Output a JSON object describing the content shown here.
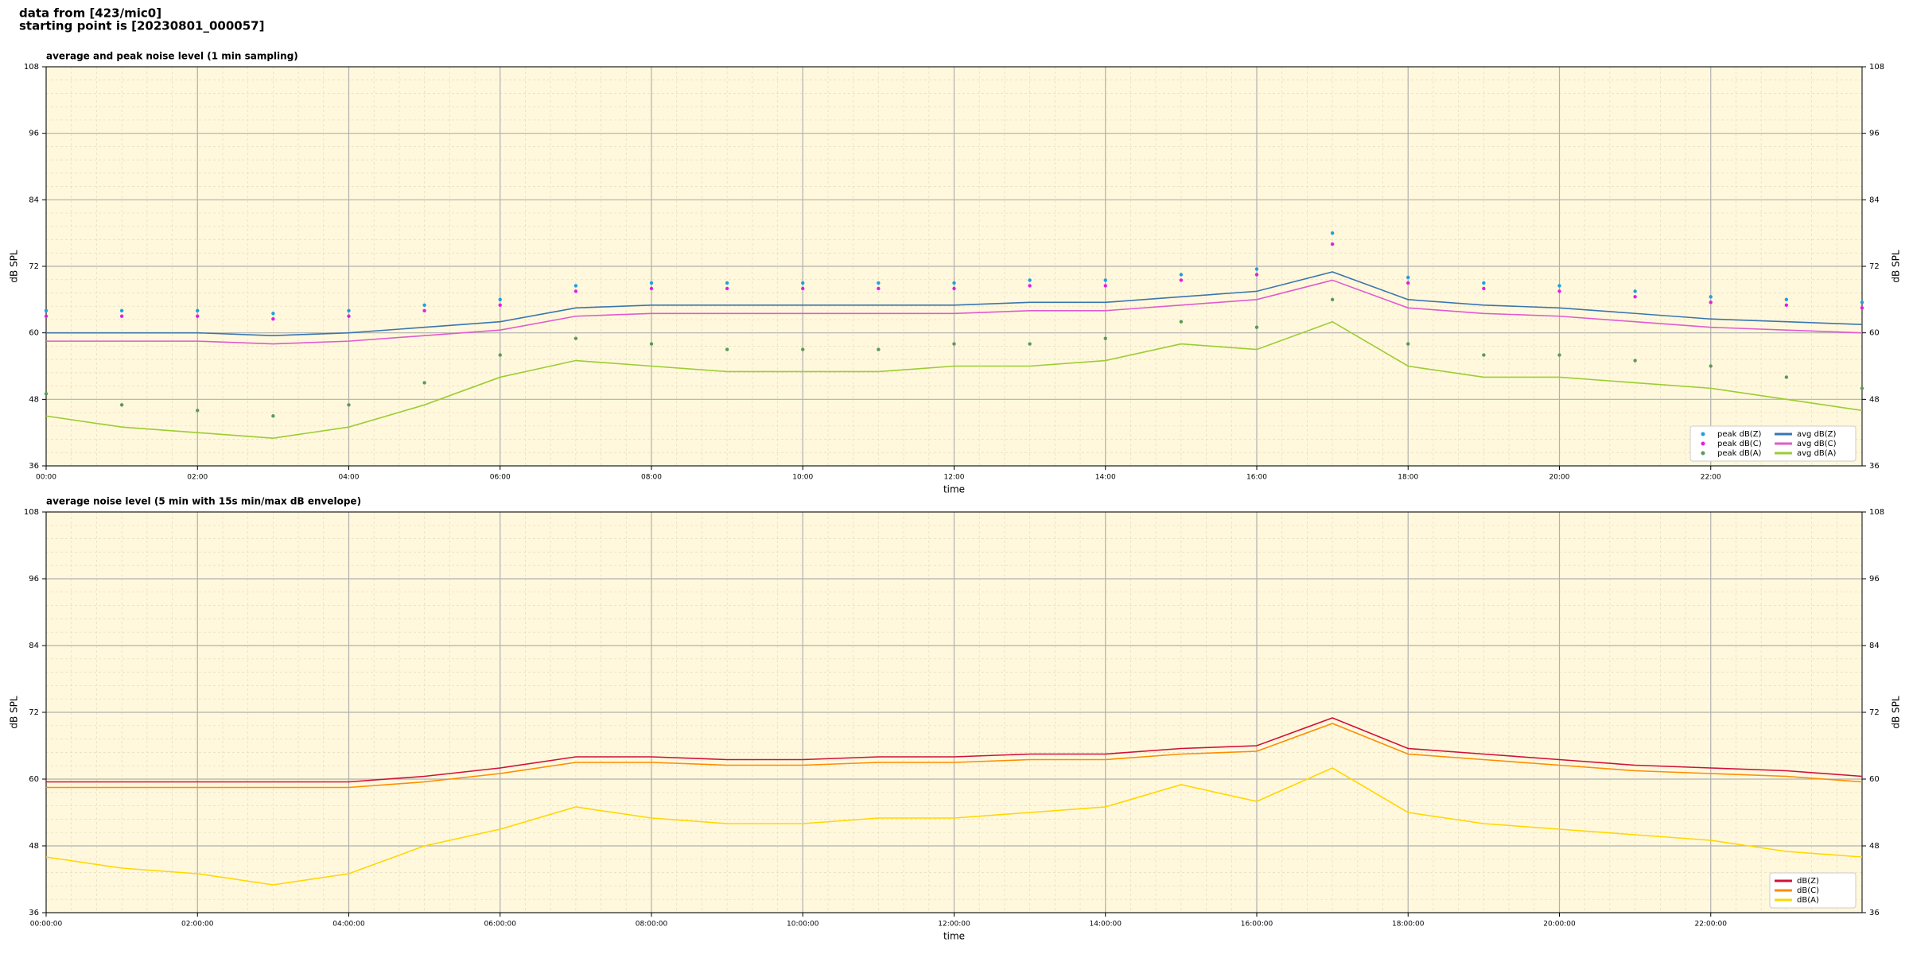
{
  "header": {
    "line1": "data from [423/mic0]",
    "line2": "starting point is [20230801_000057]"
  },
  "chart_data": [
    {
      "type": "line",
      "title": "average and peak noise level (1 min sampling)",
      "xlabel": "time",
      "ylabel": "dB SPL",
      "xlim": [
        0,
        24
      ],
      "ylim": [
        36,
        108
      ],
      "yticks": [
        36,
        48,
        60,
        72,
        84,
        96,
        108
      ],
      "xticks": [
        {
          "value": 0,
          "label": "00:00"
        },
        {
          "value": 2,
          "label": "02:00"
        },
        {
          "value": 4,
          "label": "04:00"
        },
        {
          "value": 6,
          "label": "06:00"
        },
        {
          "value": 8,
          "label": "08:00"
        },
        {
          "value": 10,
          "label": "10:00"
        },
        {
          "value": 12,
          "label": "12:00"
        },
        {
          "value": 14,
          "label": "14:00"
        },
        {
          "value": 16,
          "label": "16:00"
        },
        {
          "value": 18,
          "label": "18:00"
        },
        {
          "value": 20,
          "label": "20:00"
        },
        {
          "value": 22,
          "label": "22:00"
        }
      ],
      "grid": true,
      "minor_grid": true,
      "legend": "lower right",
      "legend_columns": 2,
      "x": [
        0,
        1,
        2,
        3,
        4,
        5,
        6,
        7,
        8,
        9,
        10,
        11,
        12,
        13,
        14,
        15,
        16,
        17,
        18,
        19,
        20,
        21,
        22,
        23,
        24
      ],
      "series": [
        {
          "name": "peak dB(Z)",
          "mark": "scatter",
          "color": "#1f9fe0",
          "values": [
            64,
            64,
            64,
            63.5,
            64,
            65,
            66,
            68.5,
            69,
            69,
            69,
            69,
            69,
            69.5,
            69.5,
            70.5,
            71.5,
            78,
            70,
            69,
            68.5,
            67.5,
            66.5,
            66,
            65.5
          ]
        },
        {
          "name": "peak dB(C)",
          "mark": "scatter",
          "color": "#e020e0",
          "values": [
            63,
            63,
            63,
            62.5,
            63,
            64,
            65,
            67.5,
            68,
            68,
            68,
            68,
            68,
            68.5,
            68.5,
            69.5,
            70.5,
            76,
            69,
            68,
            67.5,
            66.5,
            65.5,
            65,
            64.5
          ]
        },
        {
          "name": "peak dB(A)",
          "mark": "scatter",
          "color": "#5a9a5a",
          "values": [
            49,
            47,
            46,
            45,
            47,
            51,
            56,
            59,
            58,
            57,
            57,
            57,
            58,
            58,
            59,
            62,
            61,
            66,
            58,
            56,
            56,
            55,
            54,
            52,
            50
          ]
        },
        {
          "name": "avg dB(Z)",
          "mark": "line",
          "color": "#3a75b0",
          "values": [
            60,
            60,
            60,
            59.5,
            60,
            61,
            62,
            64.5,
            65,
            65,
            65,
            65,
            65,
            65.5,
            65.5,
            66.5,
            67.5,
            71,
            66,
            65,
            64.5,
            63.5,
            62.5,
            62,
            61.5
          ]
        },
        {
          "name": "avg dB(C)",
          "mark": "line",
          "color": "#e05ad0",
          "values": [
            58.5,
            58.5,
            58.5,
            58,
            58.5,
            59.5,
            60.5,
            63,
            63.5,
            63.5,
            63.5,
            63.5,
            63.5,
            64,
            64,
            65,
            66,
            69.5,
            64.5,
            63.5,
            63,
            62,
            61,
            60.5,
            60
          ]
        },
        {
          "name": "avg dB(A)",
          "mark": "line",
          "color": "#9acd32",
          "values": [
            45,
            43,
            42,
            41,
            43,
            47,
            52,
            55,
            54,
            53,
            53,
            53,
            54,
            54,
            55,
            58,
            57,
            62,
            54,
            52,
            52,
            51,
            50,
            48,
            46
          ]
        }
      ]
    },
    {
      "type": "line",
      "title": "average noise level (5 min with 15s min/max dB envelope)",
      "xlabel": "time",
      "ylabel": "dB SPL",
      "xlim": [
        0,
        24
      ],
      "ylim": [
        36,
        108
      ],
      "yticks": [
        36,
        48,
        60,
        72,
        84,
        96,
        108
      ],
      "xticks": [
        {
          "value": 0,
          "label": "00:00:00"
        },
        {
          "value": 2,
          "label": "02:00:00"
        },
        {
          "value": 4,
          "label": "04:00:00"
        },
        {
          "value": 6,
          "label": "06:00:00"
        },
        {
          "value": 8,
          "label": "08:00:00"
        },
        {
          "value": 10,
          "label": "10:00:00"
        },
        {
          "value": 12,
          "label": "12:00:00"
        },
        {
          "value": 14,
          "label": "14:00:00"
        },
        {
          "value": 16,
          "label": "16:00:00"
        },
        {
          "value": 18,
          "label": "18:00:00"
        },
        {
          "value": 20,
          "label": "20:00:00"
        },
        {
          "value": 22,
          "label": "22:00:00"
        }
      ],
      "grid": true,
      "minor_grid": true,
      "legend": "lower right",
      "legend_columns": 1,
      "x": [
        0,
        1,
        2,
        3,
        4,
        5,
        6,
        7,
        8,
        9,
        10,
        11,
        12,
        13,
        14,
        15,
        16,
        17,
        18,
        19,
        20,
        21,
        22,
        23,
        24
      ],
      "series": [
        {
          "name": "dB(Z)",
          "mark": "line",
          "color": "#d0103a",
          "values": [
            59.5,
            59.5,
            59.5,
            59.5,
            59.5,
            60.5,
            62,
            64,
            64,
            63.5,
            63.5,
            64,
            64,
            64.5,
            64.5,
            65.5,
            66,
            71,
            65.5,
            64.5,
            63.5,
            62.5,
            62,
            61.5,
            60.5
          ]
        },
        {
          "name": "dB(C)",
          "mark": "line",
          "color": "#ff8c00",
          "values": [
            58.5,
            58.5,
            58.5,
            58.5,
            58.5,
            59.5,
            61,
            63,
            63,
            62.5,
            62.5,
            63,
            63,
            63.5,
            63.5,
            64.5,
            65,
            70,
            64.5,
            63.5,
            62.5,
            61.5,
            61,
            60.5,
            59.5
          ]
        },
        {
          "name": "dB(A)",
          "mark": "line",
          "color": "#ffd700",
          "values": [
            46,
            44,
            43,
            41,
            43,
            48,
            51,
            55,
            53,
            52,
            52,
            53,
            53,
            54,
            55,
            59,
            56,
            62,
            54,
            52,
            51,
            50,
            49,
            47,
            46
          ]
        }
      ]
    }
  ]
}
